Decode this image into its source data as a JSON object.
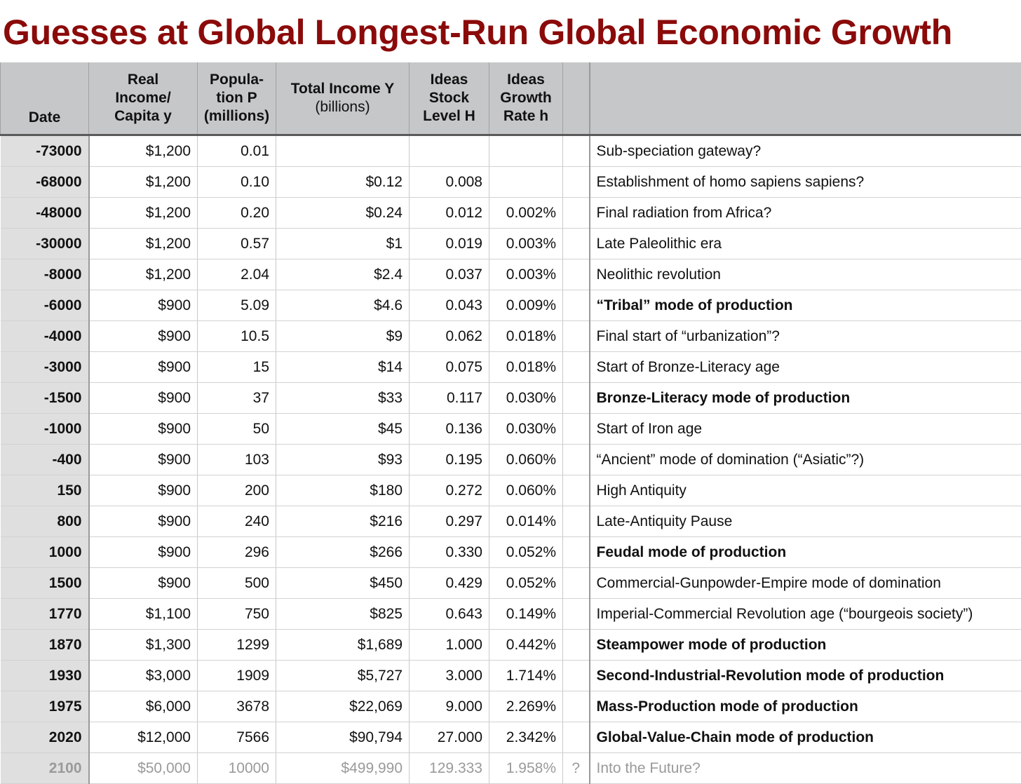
{
  "title": "Guesses at Global Longest-Run Global Economic Growth",
  "headers": {
    "date": "Date",
    "income_capita": [
      "Real",
      "Income/",
      "Capita y"
    ],
    "population": [
      "Popula-",
      "tion P",
      "(millions)"
    ],
    "total_income": [
      "Total Income Y",
      "(billions)"
    ],
    "ideas_stock": [
      "Ideas",
      "Stock",
      "Level H"
    ],
    "ideas_growth": [
      "Ideas",
      "Growth",
      "Rate h"
    ],
    "flag": "",
    "note": ""
  },
  "rows": [
    {
      "date": "-73000",
      "income": "$1,200",
      "pop": "0.01",
      "total": "",
      "stock": "",
      "growth": "",
      "flag": "",
      "note": "Sub-speciation gateway?",
      "bold": false
    },
    {
      "date": "-68000",
      "income": "$1,200",
      "pop": "0.10",
      "total": "$0.12",
      "stock": "0.008",
      "growth": "",
      "flag": "",
      "note": "Establishment of homo sapiens sapiens?",
      "bold": false
    },
    {
      "date": "-48000",
      "income": "$1,200",
      "pop": "0.20",
      "total": "$0.24",
      "stock": "0.012",
      "growth": "0.002%",
      "flag": "",
      "note": "Final radiation from Africa?",
      "bold": false
    },
    {
      "date": "-30000",
      "income": "$1,200",
      "pop": "0.57",
      "total": "$1",
      "stock": "0.019",
      "growth": "0.003%",
      "flag": "",
      "note": "Late Paleolithic era",
      "bold": false
    },
    {
      "date": "-8000",
      "income": "$1,200",
      "pop": "2.04",
      "total": "$2.4",
      "stock": "0.037",
      "growth": "0.003%",
      "flag": "",
      "note": "Neolithic revolution",
      "bold": false
    },
    {
      "date": "-6000",
      "income": "$900",
      "pop": "5.09",
      "total": "$4.6",
      "stock": "0.043",
      "growth": "0.009%",
      "flag": "",
      "note": "“Tribal” mode of production",
      "bold": true
    },
    {
      "date": "-4000",
      "income": "$900",
      "pop": "10.5",
      "total": "$9",
      "stock": "0.062",
      "growth": "0.018%",
      "flag": "",
      "note": "Final start of “urbanization”?",
      "bold": false
    },
    {
      "date": "-3000",
      "income": "$900",
      "pop": "15",
      "total": "$14",
      "stock": "0.075",
      "growth": "0.018%",
      "flag": "",
      "note": "Start of Bronze-Literacy age",
      "bold": false
    },
    {
      "date": "-1500",
      "income": "$900",
      "pop": "37",
      "total": "$33",
      "stock": "0.117",
      "growth": "0.030%",
      "flag": "",
      "note": "Bronze-Literacy mode of production",
      "bold": true
    },
    {
      "date": "-1000",
      "income": "$900",
      "pop": "50",
      "total": "$45",
      "stock": "0.136",
      "growth": "0.030%",
      "flag": "",
      "note": "Start of Iron age",
      "bold": false
    },
    {
      "date": "-400",
      "income": "$900",
      "pop": "103",
      "total": "$93",
      "stock": "0.195",
      "growth": "0.060%",
      "flag": "",
      "note": "“Ancient” mode of domination (“Asiatic”?)",
      "bold": false
    },
    {
      "date": "150",
      "income": "$900",
      "pop": "200",
      "total": "$180",
      "stock": "0.272",
      "growth": "0.060%",
      "flag": "",
      "note": "High Antiquity",
      "bold": false
    },
    {
      "date": "800",
      "income": "$900",
      "pop": "240",
      "total": "$216",
      "stock": "0.297",
      "growth": "0.014%",
      "flag": "",
      "note": "Late-Antiquity Pause",
      "bold": false
    },
    {
      "date": "1000",
      "income": "$900",
      "pop": "296",
      "total": "$266",
      "stock": "0.330",
      "growth": "0.052%",
      "flag": "",
      "note": "Feudal mode of production",
      "bold": true
    },
    {
      "date": "1500",
      "income": "$900",
      "pop": "500",
      "total": "$450",
      "stock": "0.429",
      "growth": "0.052%",
      "flag": "",
      "note": "Commercial-Gunpowder-Empire mode of domination",
      "bold": false
    },
    {
      "date": "1770",
      "income": "$1,100",
      "pop": "750",
      "total": "$825",
      "stock": "0.643",
      "growth": "0.149%",
      "flag": "",
      "note": "Imperial-Commercial Revolution age (“bourgeois society”)",
      "bold": false
    },
    {
      "date": "1870",
      "income": "$1,300",
      "pop": "1299",
      "total": "$1,689",
      "stock": "1.000",
      "growth": "0.442%",
      "flag": "",
      "note": "Steampower mode of production",
      "bold": true
    },
    {
      "date": "1930",
      "income": "$3,000",
      "pop": "1909",
      "total": "$5,727",
      "stock": "3.000",
      "growth": "1.714%",
      "flag": "",
      "note": "Second-Industrial-Revolution mode of production",
      "bold": true
    },
    {
      "date": "1975",
      "income": "$6,000",
      "pop": "3678",
      "total": "$22,069",
      "stock": "9.000",
      "growth": "2.269%",
      "flag": "",
      "note": "Mass-Production mode of production",
      "bold": true
    },
    {
      "date": "2020",
      "income": "$12,000",
      "pop": "7566",
      "total": "$90,794",
      "stock": "27.000",
      "growth": "2.342%",
      "flag": "",
      "note": "Global-Value-Chain mode of production",
      "bold": true
    },
    {
      "date": "2100",
      "income": "$50,000",
      "pop": "10000",
      "total": "$499,990",
      "stock": "129.333",
      "growth": "1.958%",
      "flag": "?",
      "note": "Into the Future?",
      "bold": false,
      "future": true
    }
  ]
}
